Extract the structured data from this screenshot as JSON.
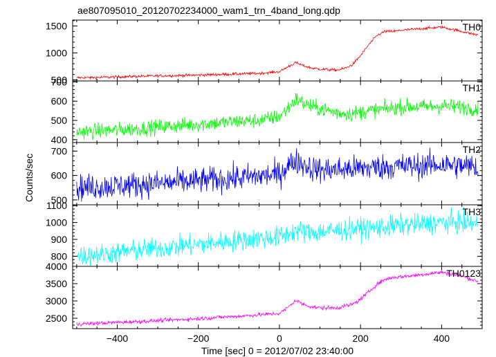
{
  "chart_data": {
    "type": "line",
    "title": "ae807095010_20120702234000_wam1_trn_4band_long.qdp",
    "xlabel": "Time [sec] 0 = 2012/07/02 23:40:00",
    "ylabel": "Counts/sec",
    "xlim": [
      -510,
      500
    ],
    "x_ticks": [
      -400,
      -200,
      0,
      200,
      400
    ],
    "x_tick_labels": [
      "−400",
      "−200",
      "0",
      "200",
      "400"
    ],
    "grid": false,
    "panels": [
      {
        "name": "TH0",
        "color": "#ff0000",
        "ylim": [
          480,
          1610
        ],
        "yticks": [
          500,
          1000,
          1500
        ],
        "noise": 18,
        "series_x": [
          -500,
          -450,
          -400,
          -350,
          -300,
          -250,
          -200,
          -150,
          -100,
          -50,
          0,
          20,
          40,
          60,
          80,
          100,
          120,
          140,
          160,
          180,
          200,
          220,
          240,
          260,
          280,
          300,
          350,
          400,
          450,
          490
        ],
        "series_y": [
          540,
          545,
          555,
          565,
          575,
          580,
          590,
          600,
          610,
          620,
          650,
          740,
          820,
          760,
          720,
          700,
          690,
          680,
          710,
          780,
          950,
          1150,
          1320,
          1400,
          1400,
          1420,
          1450,
          1480,
          1400,
          1330
        ]
      },
      {
        "name": "TH1",
        "color": "#00ff00",
        "ylim": [
          385,
          705
        ],
        "yticks": [
          400,
          500,
          600,
          700
        ],
        "noise": 28,
        "series_x": [
          -500,
          -400,
          -300,
          -200,
          -100,
          -50,
          0,
          20,
          40,
          60,
          80,
          100,
          140,
          180,
          220,
          260,
          300,
          350,
          400,
          450,
          490
        ],
        "series_y": [
          440,
          450,
          465,
          480,
          495,
          500,
          520,
          560,
          610,
          590,
          570,
          560,
          540,
          535,
          550,
          560,
          570,
          570,
          575,
          570,
          560
        ]
      },
      {
        "name": "TH2",
        "color": "#0000ff",
        "ylim": [
          480,
          735
        ],
        "yticks": [
          500,
          600,
          700
        ],
        "noise": 38,
        "series_x": [
          -500,
          -400,
          -300,
          -200,
          -100,
          0,
          20,
          40,
          60,
          80,
          100,
          150,
          200,
          250,
          300,
          350,
          400,
          450,
          490
        ],
        "series_y": [
          550,
          558,
          567,
          578,
          590,
          605,
          640,
          660,
          645,
          630,
          622,
          625,
          630,
          635,
          638,
          640,
          645,
          640,
          635
        ]
      },
      {
        "name": "TH3",
        "color": "#00ffff",
        "ylim": [
          740,
          1105
        ],
        "yticks": [
          800,
          900,
          1000,
          1100
        ],
        "noise": 45,
        "series_x": [
          -500,
          -400,
          -300,
          -200,
          -100,
          0,
          40,
          80,
          150,
          200,
          250,
          300,
          350,
          400,
          450,
          490
        ],
        "series_y": [
          800,
          820,
          848,
          870,
          895,
          915,
          950,
          940,
          955,
          965,
          970,
          985,
          990,
          1000,
          1000,
          990
        ]
      },
      {
        "name": "TH0123",
        "color": "#ff00ff",
        "ylim": [
          2200,
          4000
        ],
        "yticks": [
          2500,
          3000,
          3500,
          4000
        ],
        "noise": 40,
        "series_x": [
          -500,
          -400,
          -300,
          -200,
          -100,
          0,
          20,
          40,
          60,
          80,
          100,
          140,
          180,
          200,
          220,
          240,
          260,
          280,
          300,
          350,
          400,
          450,
          490
        ],
        "series_y": [
          2330,
          2380,
          2430,
          2490,
          2560,
          2640,
          2800,
          3020,
          2900,
          2830,
          2800,
          2800,
          2900,
          3050,
          3260,
          3480,
          3620,
          3680,
          3700,
          3760,
          3830,
          3720,
          3560
        ]
      }
    ]
  }
}
